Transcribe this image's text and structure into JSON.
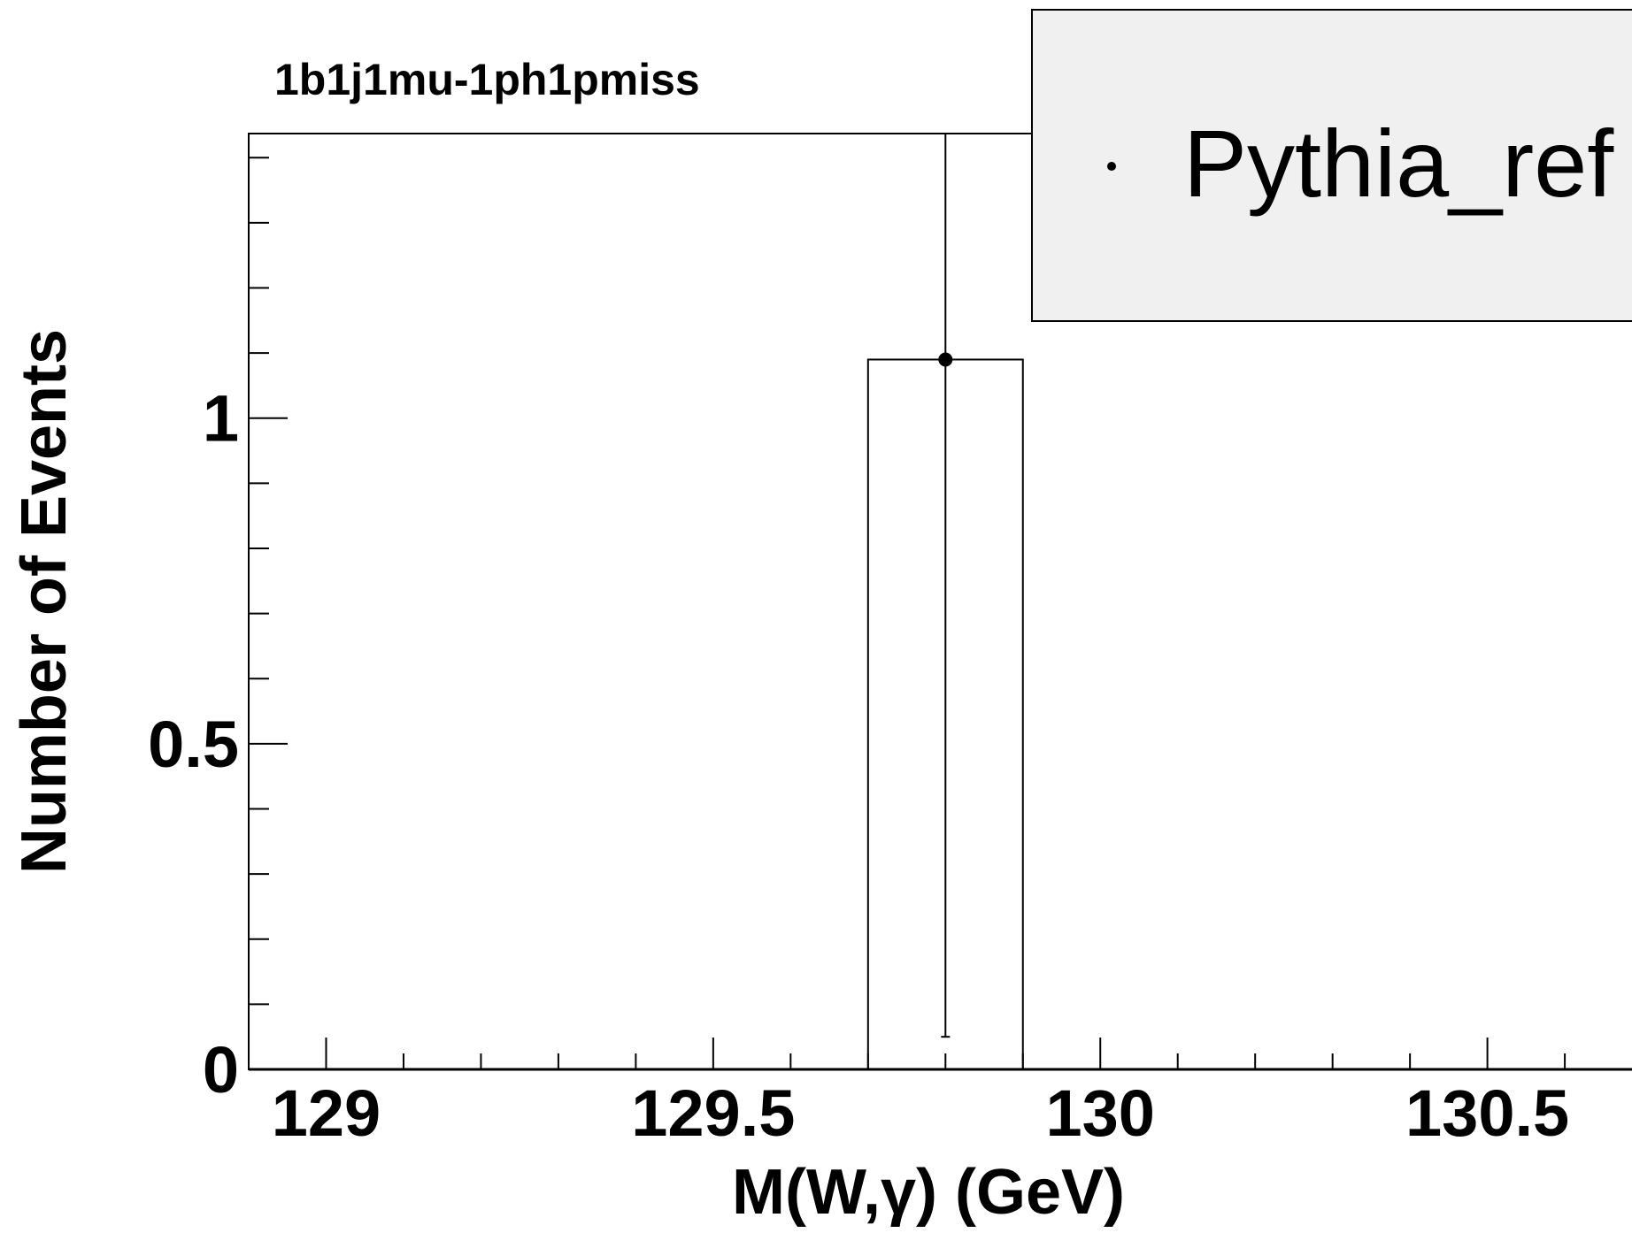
{
  "chart_data": {
    "type": "bar",
    "title": "1b1j1mu-1ph1pmiss",
    "xlabel": "M(W,γ) (GeV)",
    "ylabel": "Number of Events",
    "xlim": [
      128.9,
      131.0
    ],
    "ylim": [
      0,
      1.437
    ],
    "x_ticks": [
      {
        "value": 129,
        "label": "129"
      },
      {
        "value": 129.5,
        "label": "129.5"
      },
      {
        "value": 130,
        "label": "130"
      },
      {
        "value": 130.5,
        "label": "130.5"
      }
    ],
    "y_ticks": [
      {
        "value": 0,
        "label": "0"
      },
      {
        "value": 0.5,
        "label": "0.5"
      },
      {
        "value": 1,
        "label": "1"
      }
    ],
    "series": [
      {
        "name": "Pythia_ref",
        "bins": [
          {
            "x_low": 129.7,
            "x_high": 129.9,
            "value": 1.09,
            "x_center": 129.8,
            "err_low": 0.05,
            "err_high": 1.437
          }
        ]
      }
    ],
    "legend": {
      "placement": "top-right",
      "entries": [
        "Pythia_ref"
      ]
    },
    "grid": false
  }
}
